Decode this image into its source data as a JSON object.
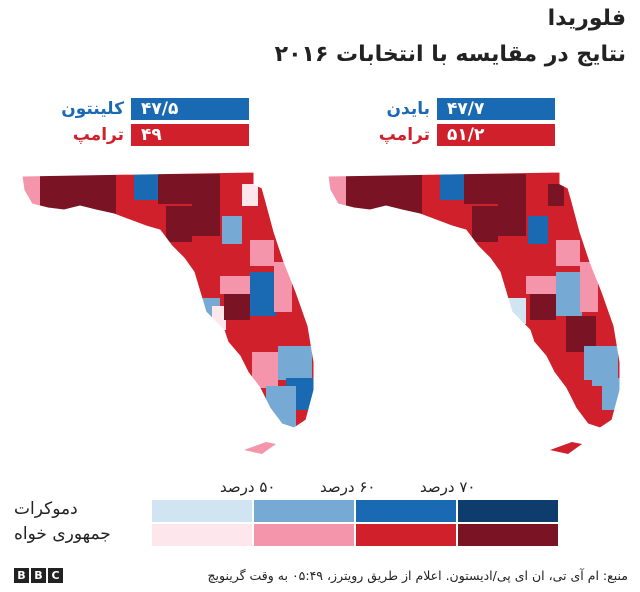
{
  "header": {
    "title": "فلوریدا",
    "subtitle": "نتایج در مقایسه با انتخابات ۲۰۱۶"
  },
  "results": {
    "y2020": {
      "dem_name": "بایدن",
      "dem_value": "۴۷/۷",
      "rep_name": "ترامپ",
      "rep_value": "۵۱/۲"
    },
    "y2016": {
      "dem_name": "کلینتون",
      "dem_value": "۴۷/۵",
      "rep_name": "ترامپ",
      "rep_value": "۴۹"
    }
  },
  "legend": {
    "ticks": [
      "۷۰ درصد",
      "۶۰ درصد",
      "۵۰ درصد"
    ],
    "dem_label": "دموکرات",
    "rep_label": "جمهوری خواه",
    "dem_colors": [
      "#d0e4f1",
      "#76a9d3",
      "#1a6ab3",
      "#0d3c6d"
    ],
    "rep_colors": [
      "#fde6ec",
      "#f495ab",
      "#d0202c",
      "#7a1424"
    ]
  },
  "colors": {
    "dem_accent": "#1a6ab3",
    "rep_accent": "#d0202c"
  },
  "footer": {
    "source": "منبع: ام آی تی، ان ای پی/ادیستون. اعلام از طریق رویترز، ۰۵:۴۹ به وقت گرینویچ",
    "logo": [
      "B",
      "B",
      "C"
    ]
  }
}
